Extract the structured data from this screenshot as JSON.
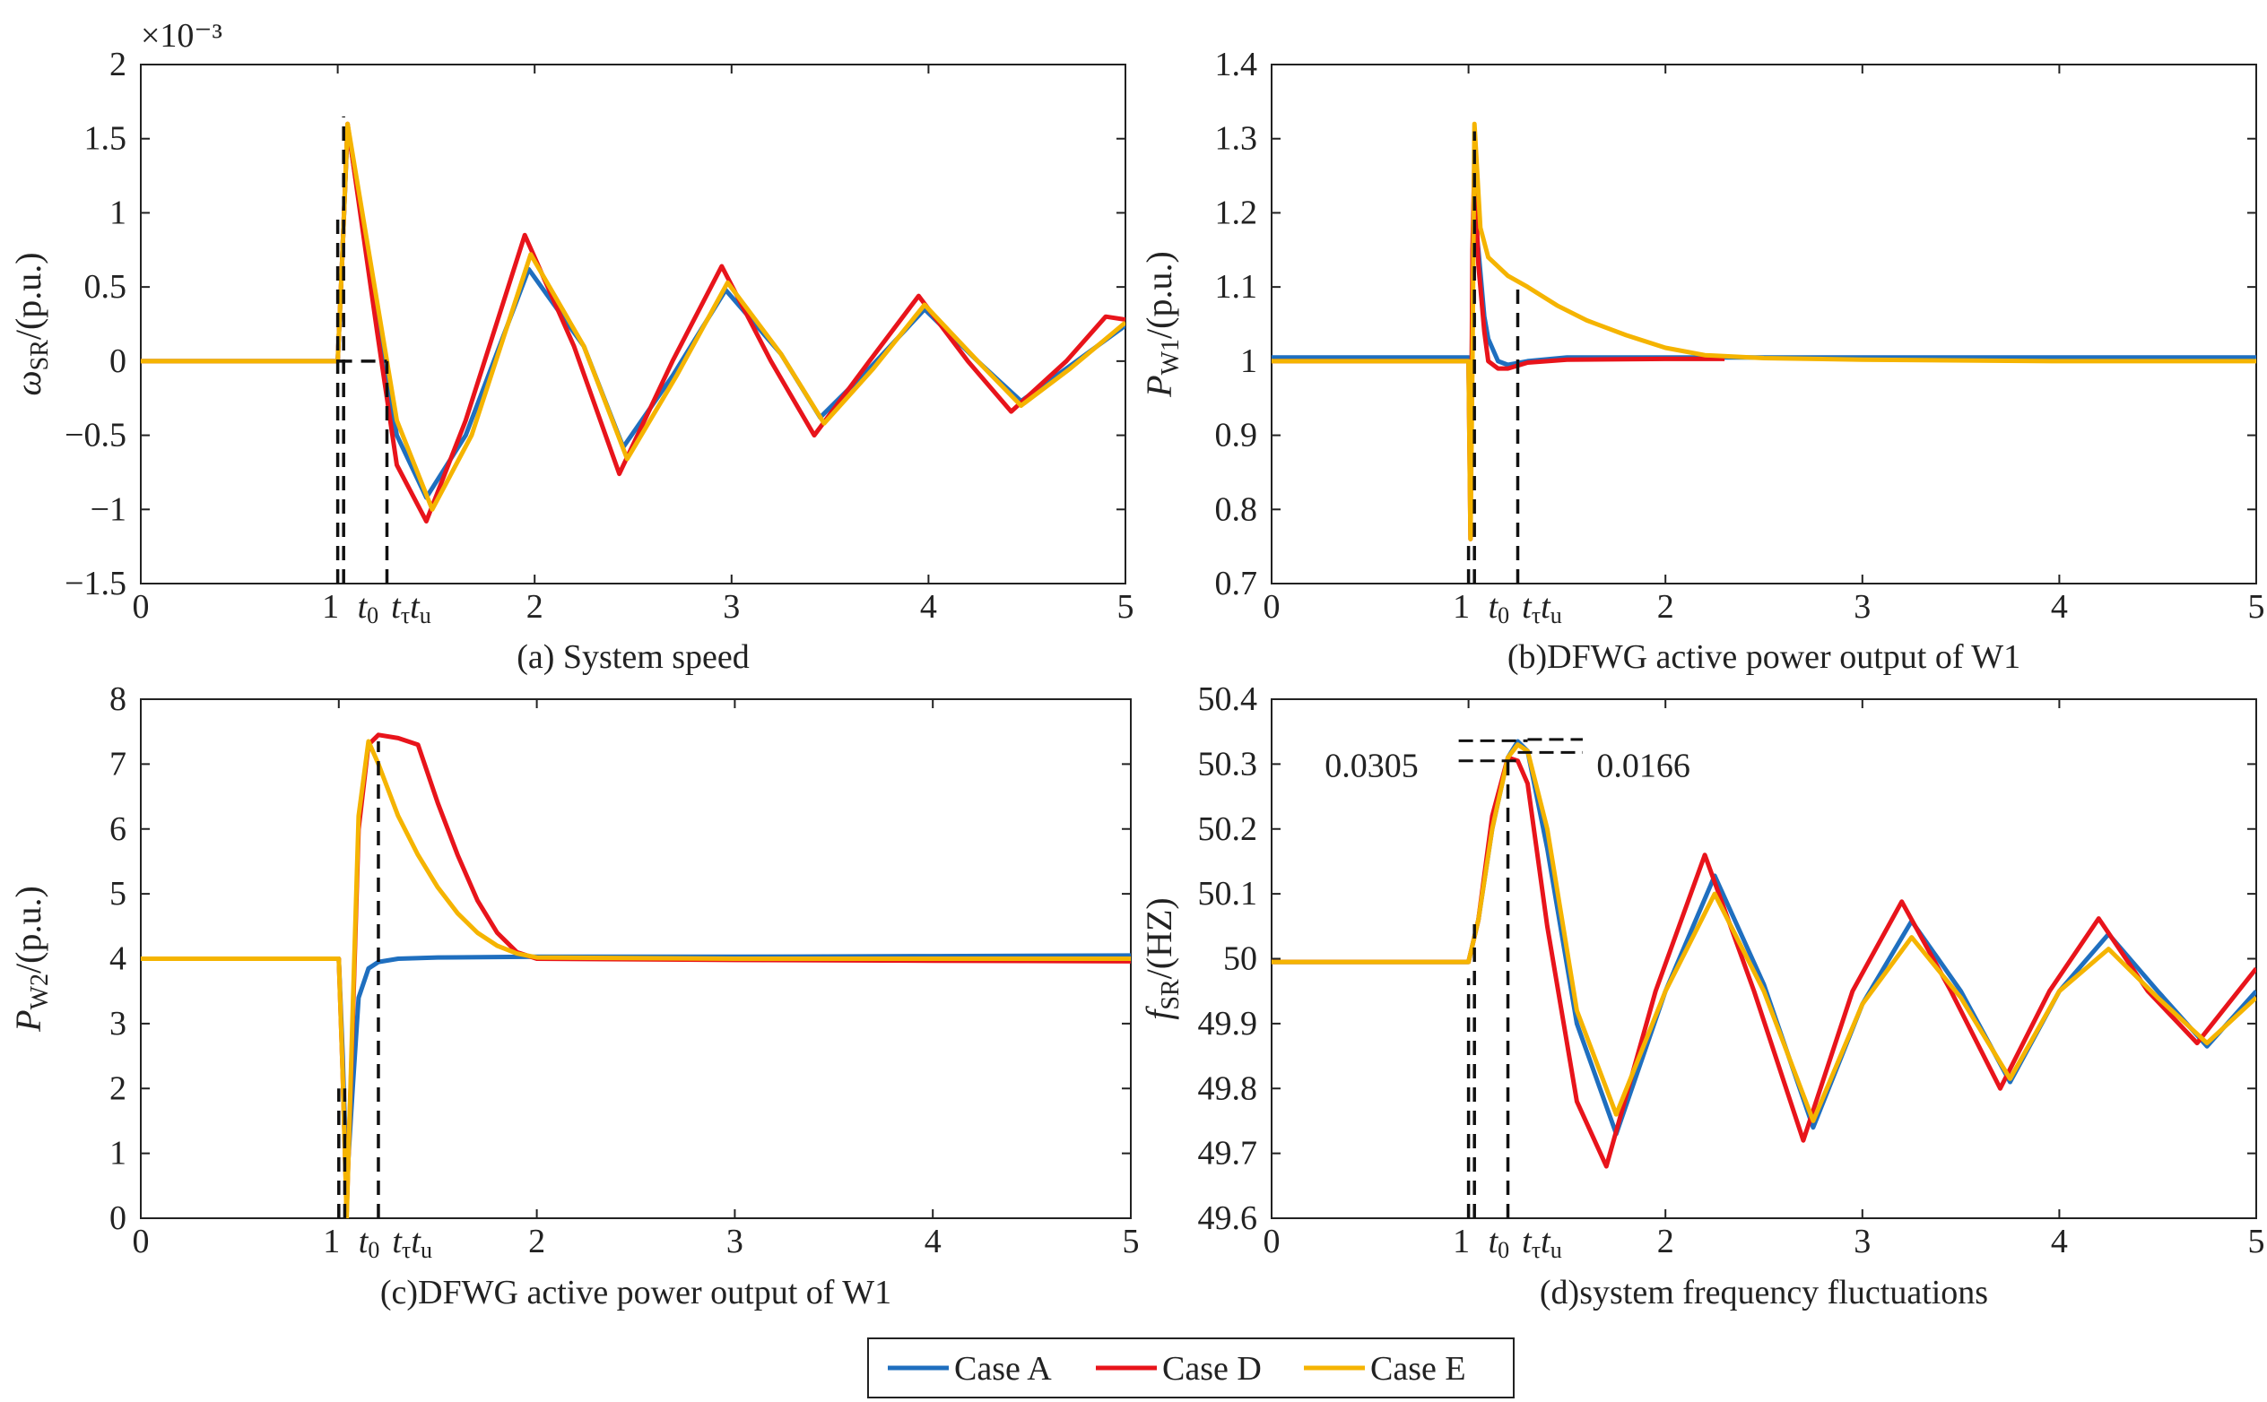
{
  "legend": [
    {
      "name": "Case A",
      "color": "#1f6fbf"
    },
    {
      "name": "Case D",
      "color": "#e8141b"
    },
    {
      "name": "Case E",
      "color": "#f5b400"
    }
  ],
  "chart_data": [
    {
      "type": "line",
      "title": "(a) System speed",
      "xlabel": "",
      "ylabel": "ωSR/(p.u.)",
      "y_multiplier": "×10⁻³",
      "xlim": [
        0,
        5
      ],
      "ylim": [
        -1.5,
        2
      ],
      "xticks": [
        "0",
        "1",
        "2",
        "3",
        "4",
        "5"
      ],
      "yticks": [
        "−1.5",
        "−1",
        "−0.5",
        "0",
        "0.5",
        "1",
        "1.5",
        "2"
      ],
      "time_marks": [
        "t0",
        "tτ",
        "tu"
      ],
      "series": [
        {
          "name": "Case A",
          "x": [
            0,
            1,
            1.02,
            1.05,
            1.2,
            1.3,
            1.45,
            1.65,
            1.97,
            2.25,
            2.45,
            2.7,
            2.97,
            3.25,
            3.45,
            3.7,
            3.98,
            4.25,
            4.47,
            4.7,
            5
          ],
          "y": [
            0,
            0,
            0.6,
            1.58,
            0.3,
            -0.5,
            -0.92,
            -0.5,
            0.62,
            0.1,
            -0.58,
            -0.1,
            0.48,
            0.05,
            -0.38,
            -0.05,
            0.35,
            0.0,
            -0.27,
            -0.05,
            0.24
          ]
        },
        {
          "name": "Case D",
          "x": [
            0,
            1,
            1.02,
            1.05,
            1.2,
            1.3,
            1.45,
            1.65,
            1.95,
            2.2,
            2.43,
            2.7,
            2.95,
            3.2,
            3.42,
            3.7,
            3.95,
            4.2,
            4.42,
            4.7,
            4.9,
            5
          ],
          "y": [
            0,
            0,
            0.6,
            1.6,
            0.2,
            -0.7,
            -1.08,
            -0.4,
            0.85,
            0.1,
            -0.76,
            0.0,
            0.64,
            0.0,
            -0.5,
            0.0,
            0.44,
            0.0,
            -0.34,
            0.0,
            0.3,
            0.28
          ]
        },
        {
          "name": "Case E",
          "x": [
            0,
            1,
            1.02,
            1.05,
            1.2,
            1.3,
            1.48,
            1.68,
            1.98,
            2.25,
            2.47,
            2.72,
            2.98,
            3.25,
            3.47,
            3.72,
            3.98,
            4.25,
            4.47,
            4.72,
            5
          ],
          "y": [
            0,
            0,
            0.6,
            1.6,
            0.4,
            -0.4,
            -1.0,
            -0.5,
            0.72,
            0.1,
            -0.66,
            -0.1,
            0.53,
            0.05,
            -0.42,
            -0.05,
            0.38,
            0.0,
            -0.3,
            -0.05,
            0.26
          ]
        }
      ]
    },
    {
      "type": "line",
      "title": "(b)DFWG active power output of W1",
      "xlabel": "",
      "ylabel": "PW1/(p.u.)",
      "xlim": [
        0,
        5
      ],
      "ylim": [
        0.7,
        1.4
      ],
      "xticks": [
        "0",
        "1",
        "2",
        "3",
        "4",
        "5"
      ],
      "yticks": [
        "0.7",
        "0.8",
        "0.9",
        "1",
        "1.1",
        "1.2",
        "1.3",
        "1.4"
      ],
      "time_marks": [
        "t0",
        "tτ",
        "tu"
      ],
      "series": [
        {
          "name": "Case A",
          "x": [
            0,
            1,
            1.01,
            1.02,
            1.03,
            1.05,
            1.08,
            1.1,
            1.15,
            1.2,
            1.3,
            1.5,
            2,
            3,
            5
          ],
          "y": [
            1.005,
            1.005,
            0.8,
            1.1,
            1.2,
            1.15,
            1.06,
            1.03,
            1.0,
            0.995,
            1.0,
            1.005,
            1.005,
            1.005,
            1.005
          ]
        },
        {
          "name": "Case D",
          "x": [
            0,
            1,
            1.01,
            1.02,
            1.03,
            1.05,
            1.08,
            1.1,
            1.15,
            1.2,
            1.3,
            1.5,
            2,
            2.3
          ],
          "y": [
            1.0,
            1.0,
            0.76,
            1.15,
            1.27,
            1.13,
            1.04,
            1.0,
            0.99,
            0.99,
            0.998,
            1.002,
            1.003,
            1.003
          ]
        },
        {
          "name": "Case E",
          "x": [
            0,
            1,
            1.01,
            1.02,
            1.03,
            1.06,
            1.1,
            1.2,
            1.3,
            1.45,
            1.6,
            1.8,
            2.0,
            2.2,
            2.5,
            3,
            4,
            5
          ],
          "y": [
            1.0,
            1.0,
            0.76,
            1.0,
            1.32,
            1.18,
            1.14,
            1.115,
            1.1,
            1.075,
            1.055,
            1.035,
            1.018,
            1.008,
            1.004,
            1.002,
            1.0,
            1.0
          ]
        }
      ]
    },
    {
      "type": "line",
      "title": "(c)DFWG active power output of W1",
      "xlabel": "",
      "ylabel": "PW2/(p.u.)",
      "xlim": [
        0,
        5
      ],
      "ylim": [
        0,
        8
      ],
      "xticks": [
        "0",
        "1",
        "2",
        "3",
        "4",
        "5"
      ],
      "yticks": [
        "0",
        "1",
        "2",
        "3",
        "4",
        "5",
        "6",
        "7",
        "8"
      ],
      "time_marks": [
        "t0",
        "tτ",
        "tu"
      ],
      "series": [
        {
          "name": "Case A",
          "x": [
            0,
            1,
            1.02,
            1.04,
            1.07,
            1.1,
            1.15,
            1.2,
            1.3,
            1.5,
            2,
            3,
            4,
            5
          ],
          "y": [
            4,
            4,
            2.5,
            0.5,
            2.0,
            3.4,
            3.85,
            3.95,
            4.0,
            4.02,
            4.03,
            4.03,
            4.04,
            4.05
          ]
        },
        {
          "name": "Case D",
          "x": [
            0,
            1,
            1.02,
            1.04,
            1.07,
            1.1,
            1.15,
            1.2,
            1.3,
            1.4,
            1.5,
            1.6,
            1.7,
            1.8,
            1.9,
            2.0,
            3,
            4,
            5
          ],
          "y": [
            4,
            4,
            2.2,
            0.1,
            3.0,
            6.0,
            7.3,
            7.45,
            7.4,
            7.3,
            6.4,
            5.6,
            4.9,
            4.4,
            4.1,
            4.0,
            3.98,
            3.97,
            3.96
          ]
        },
        {
          "name": "Case E",
          "x": [
            0,
            1,
            1.02,
            1.04,
            1.07,
            1.1,
            1.15,
            1.2,
            1.3,
            1.4,
            1.5,
            1.6,
            1.7,
            1.8,
            1.9,
            2.0,
            3,
            4,
            5
          ],
          "y": [
            4,
            4,
            2.2,
            0.0,
            3.2,
            6.2,
            7.35,
            7.0,
            6.2,
            5.6,
            5.1,
            4.7,
            4.4,
            4.2,
            4.08,
            4.02,
            4.0,
            4.0,
            4.0
          ]
        }
      ]
    },
    {
      "type": "line",
      "title": "(d)system frequency fluctuations",
      "xlabel": "",
      "ylabel": "fSR/(HZ)",
      "xlim": [
        0,
        5
      ],
      "ylim": [
        49.6,
        50.4
      ],
      "xticks": [
        "0",
        "1",
        "2",
        "3",
        "4",
        "5"
      ],
      "yticks": [
        "49.6",
        "49.7",
        "49.8",
        "49.9",
        "50",
        "50.1",
        "50.2",
        "50.3",
        "50.4"
      ],
      "time_marks": [
        "t0",
        "tτ",
        "tu"
      ],
      "annotations": [
        "0.0305",
        "0.0166"
      ],
      "series": [
        {
          "name": "Case A",
          "x": [
            0,
            1,
            1.05,
            1.12,
            1.2,
            1.25,
            1.3,
            1.4,
            1.55,
            1.75,
            2.0,
            2.25,
            2.5,
            2.75,
            3.0,
            3.25,
            3.5,
            3.75,
            4.0,
            4.25,
            4.5,
            4.75,
            5
          ],
          "y": [
            49.995,
            49.995,
            50.06,
            50.2,
            50.31,
            50.335,
            50.32,
            50.17,
            49.9,
            49.73,
            49.95,
            50.128,
            49.96,
            49.74,
            49.93,
            50.058,
            49.95,
            49.81,
            49.95,
            50.038,
            49.95,
            49.865,
            49.95
          ]
        },
        {
          "name": "Case D",
          "x": [
            0,
            1,
            1.05,
            1.12,
            1.2,
            1.25,
            1.3,
            1.4,
            1.55,
            1.7,
            1.95,
            2.2,
            2.45,
            2.7,
            2.95,
            3.2,
            3.45,
            3.7,
            3.95,
            4.2,
            4.45,
            4.7,
            5
          ],
          "y": [
            49.995,
            49.995,
            50.06,
            50.22,
            50.31,
            50.305,
            50.27,
            50.05,
            49.78,
            49.68,
            49.95,
            50.16,
            49.95,
            49.72,
            49.95,
            50.088,
            49.95,
            49.8,
            49.95,
            50.062,
            49.95,
            49.87,
            49.985
          ]
        },
        {
          "name": "Case E",
          "x": [
            0,
            1,
            1.05,
            1.12,
            1.2,
            1.25,
            1.3,
            1.4,
            1.55,
            1.75,
            2.0,
            2.25,
            2.5,
            2.75,
            3.0,
            3.25,
            3.5,
            3.75,
            4.0,
            4.25,
            4.5,
            4.75,
            5
          ],
          "y": [
            49.995,
            49.995,
            50.06,
            50.2,
            50.31,
            50.33,
            50.32,
            50.2,
            49.92,
            49.76,
            49.95,
            50.1,
            49.95,
            49.75,
            49.93,
            50.033,
            49.94,
            49.815,
            49.95,
            50.015,
            49.94,
            49.87,
            49.94
          ]
        }
      ]
    }
  ]
}
